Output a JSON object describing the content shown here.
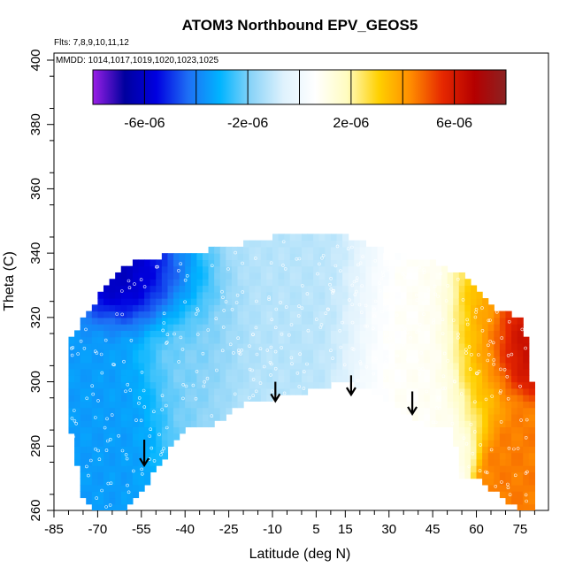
{
  "chart_data": {
    "type": "heatmap",
    "title": "ATOM3 Northbound EPV_GEOS5",
    "annotations": {
      "flights": "Flts: 7,8,9,10,11,12",
      "dates": "MMDD: 1014,1017,1019,1020,1023,1025"
    },
    "xlabel": "Latitude (deg N)",
    "ylabel": "Theta (C)",
    "xlim": [
      -85,
      85
    ],
    "ylim": [
      260,
      405
    ],
    "x_ticks": [
      -85,
      -70,
      -55,
      -40,
      -25,
      -10,
      5,
      15,
      30,
      45,
      60,
      75
    ],
    "y_ticks": [
      260,
      280,
      300,
      320,
      340,
      360,
      380,
      400
    ],
    "colorbar": {
      "range": [
        -8e-06,
        8e-06
      ],
      "tick_values": [
        -6e-06,
        -2e-06,
        2e-06,
        6e-06
      ],
      "tick_labels": [
        "-6e-06",
        "-2e-06",
        "2e-06",
        "6e-06"
      ],
      "colors": [
        "#9a1fe6",
        "#00009e",
        "#0000e0",
        "#1e6ff5",
        "#00b4ff",
        "#8cd4f8",
        "#dff2fd",
        "#ffffff",
        "#fffcc0",
        "#ffd000",
        "#ff8c00",
        "#e62800",
        "#b50000",
        "#8b2222"
      ]
    },
    "coverage": {
      "top_boundary": [
        [
          -80,
          312
        ],
        [
          -76,
          318
        ],
        [
          -70,
          326
        ],
        [
          -62,
          335
        ],
        [
          -55,
          338
        ],
        [
          -40,
          340
        ],
        [
          -25,
          342
        ],
        [
          -10,
          345
        ],
        [
          5,
          346
        ],
        [
          15,
          345
        ],
        [
          25,
          342
        ],
        [
          35,
          339
        ],
        [
          45,
          337
        ],
        [
          55,
          333
        ],
        [
          62,
          327
        ],
        [
          68,
          322
        ],
        [
          75,
          320
        ],
        [
          78,
          310
        ],
        [
          79,
          300
        ]
      ],
      "bottom_boundary": [
        [
          -80,
          290
        ],
        [
          -75,
          265
        ],
        [
          -72,
          260
        ],
        [
          -60,
          260
        ],
        [
          -52,
          270
        ],
        [
          -40,
          286
        ],
        [
          -30,
          287
        ],
        [
          -20,
          293
        ],
        [
          -10,
          295
        ],
        [
          0,
          296
        ],
        [
          5,
          298
        ],
        [
          15,
          300
        ],
        [
          25,
          297
        ],
        [
          35,
          291
        ],
        [
          45,
          286
        ],
        [
          52,
          285
        ],
        [
          55,
          270
        ],
        [
          60,
          270
        ],
        [
          68,
          265
        ],
        [
          75,
          260
        ],
        [
          79,
          260
        ]
      ],
      "field_regions": [
        {
          "lat_range": [
            -80,
            -55
          ],
          "theta_range": [
            290,
            320
          ],
          "epv": -3.5e-06
        },
        {
          "lat_range": [
            -70,
            -40
          ],
          "theta_range": [
            320,
            338
          ],
          "epv": -6.5e-06
        },
        {
          "lat_range": [
            -55,
            -25
          ],
          "theta_range": [
            300,
            335
          ],
          "epv": -2e-06
        },
        {
          "lat_range": [
            -25,
            20
          ],
          "theta_range": [
            295,
            345
          ],
          "epv": -1.2e-06
        },
        {
          "lat_range": [
            20,
            55
          ],
          "theta_range": [
            290,
            340
          ],
          "epv": 8e-07
        },
        {
          "lat_range": [
            55,
            70
          ],
          "theta_range": [
            300,
            335
          ],
          "epv": 4e-06
        },
        {
          "lat_range": [
            68,
            79
          ],
          "theta_range": [
            305,
            322
          ],
          "epv": 6.5e-06
        },
        {
          "lat_range": [
            70,
            79
          ],
          "theta_range": [
            260,
            285
          ],
          "epv": 4.5e-06
        }
      ]
    },
    "arrows": [
      {
        "lat": -54,
        "theta_top": 282,
        "theta_tip": 274
      },
      {
        "lat": -9,
        "theta_top": 300,
        "theta_tip": 294
      },
      {
        "lat": 17,
        "theta_top": 302,
        "theta_tip": 296
      },
      {
        "lat": 38,
        "theta_top": 297,
        "theta_tip": 290
      }
    ]
  }
}
